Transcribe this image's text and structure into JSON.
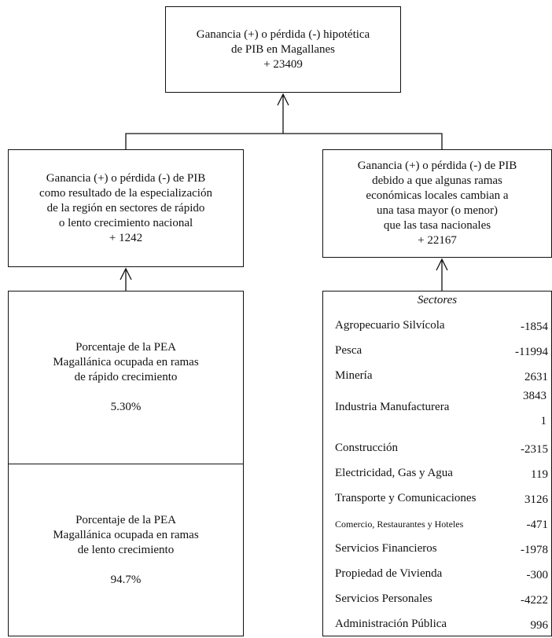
{
  "top_box": {
    "lines": [
      "Ganancia (+) o pérdida (-) hipotética",
      "de PIB en Magallanes",
      "+ 23409"
    ]
  },
  "left_box": {
    "lines": [
      "Ganancia (+) o pérdida (-) de PIB",
      "como resultado de la especialización",
      "de la región en sectores de rápido",
      "o lento crecimiento nacional",
      "+ 1242"
    ]
  },
  "right_box": {
    "lines": [
      "Ganancia (+) o pérdida (-) de PIB",
      "debido a que algunas ramas",
      "económicas locales cambian a",
      "una tasa mayor (o menor)",
      "que las tasa nacionales",
      "+ 22167"
    ]
  },
  "fast_box": {
    "lines": [
      "Porcentaje de la PEA",
      "Magallánica ocupada en ramas",
      "de rápido crecimiento"
    ],
    "value": "5.30%"
  },
  "slow_box": {
    "lines": [
      "Porcentaje de la PEA",
      "Magallánica ocupada en ramas",
      "de lento crecimiento"
    ],
    "value": "94.7%"
  },
  "sectors_table": {
    "header": "Sectores",
    "rows": [
      [
        "Agropecuario Silvícola",
        -1854
      ],
      [
        "Pesca",
        -11994
      ],
      [
        "Minería",
        2631
      ],
      [
        "Industria Manufacturera",
        38431
      ],
      [
        "Construcción",
        -2315
      ],
      [
        "Electricidad, Gas y Agua",
        119
      ],
      [
        "Transporte y Comunicaciones",
        3126
      ],
      [
        "Comercio, Restaurantes y Hoteles",
        -471
      ],
      [
        "Servicios Financieros",
        -1978
      ],
      [
        "Propiedad de Vivienda",
        -300
      ],
      [
        "Servicios Personales",
        -4222
      ],
      [
        "Administración Pública",
        996
      ]
    ]
  }
}
